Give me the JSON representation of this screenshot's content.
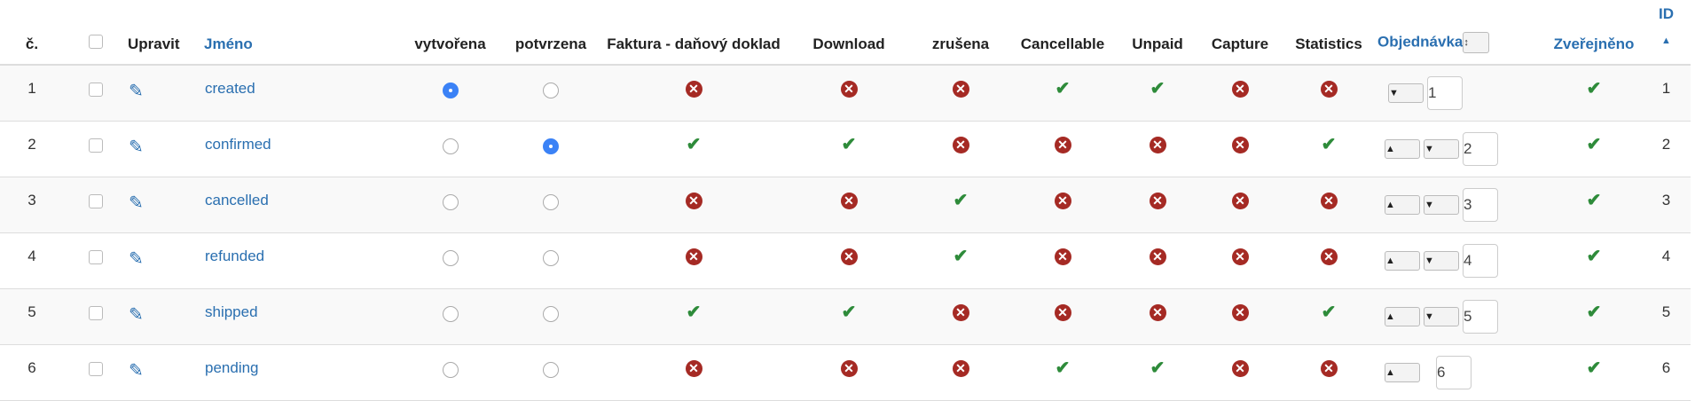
{
  "headers": {
    "num": "č.",
    "edit": "Upravit",
    "name": "Jméno",
    "created": "vytvořena",
    "confirmed": "potvrzena",
    "invoice": "Faktura - daňový doklad",
    "download": "Download",
    "cancelled": "zrušena",
    "cancellable": "Cancellable",
    "unpaid": "Unpaid",
    "capture": "Capture",
    "statistics": "Statistics",
    "ordering": "Objednávka",
    "published": "Zveřejněno",
    "id": "ID"
  },
  "icons": {
    "check": "check-icon",
    "cross": "times-circle-icon",
    "edit": "pencil-icon",
    "sort": "caret-up-icon"
  },
  "colors": {
    "link": "#2a6fb0",
    "ok": "#2e8b3a",
    "error": "#a52a24",
    "radio": "#3b82f6"
  },
  "rows": [
    {
      "num": "1",
      "name": "created",
      "default_created": true,
      "default_confirmed": false,
      "invoice": false,
      "download": false,
      "cancelled": false,
      "cancellable": true,
      "unpaid": true,
      "capture": false,
      "statistics": false,
      "order": "1",
      "up": false,
      "down": true,
      "published": true,
      "id": "1"
    },
    {
      "num": "2",
      "name": "confirmed",
      "default_created": false,
      "default_confirmed": true,
      "invoice": true,
      "download": true,
      "cancelled": false,
      "cancellable": false,
      "unpaid": false,
      "capture": false,
      "statistics": true,
      "order": "2",
      "up": true,
      "down": true,
      "published": true,
      "id": "2"
    },
    {
      "num": "3",
      "name": "cancelled",
      "default_created": false,
      "default_confirmed": false,
      "invoice": false,
      "download": false,
      "cancelled": true,
      "cancellable": false,
      "unpaid": false,
      "capture": false,
      "statistics": false,
      "order": "3",
      "up": true,
      "down": true,
      "published": true,
      "id": "3"
    },
    {
      "num": "4",
      "name": "refunded",
      "default_created": false,
      "default_confirmed": false,
      "invoice": false,
      "download": false,
      "cancelled": true,
      "cancellable": false,
      "unpaid": false,
      "capture": false,
      "statistics": false,
      "order": "4",
      "up": true,
      "down": true,
      "published": true,
      "id": "4"
    },
    {
      "num": "5",
      "name": "shipped",
      "default_created": false,
      "default_confirmed": false,
      "invoice": true,
      "download": true,
      "cancelled": false,
      "cancellable": false,
      "unpaid": false,
      "capture": false,
      "statistics": true,
      "order": "5",
      "up": true,
      "down": true,
      "published": true,
      "id": "5"
    },
    {
      "num": "6",
      "name": "pending",
      "default_created": false,
      "default_confirmed": false,
      "invoice": false,
      "download": false,
      "cancelled": false,
      "cancellable": true,
      "unpaid": true,
      "capture": false,
      "statistics": false,
      "order": "6",
      "up": true,
      "down": false,
      "published": true,
      "id": "6"
    }
  ]
}
